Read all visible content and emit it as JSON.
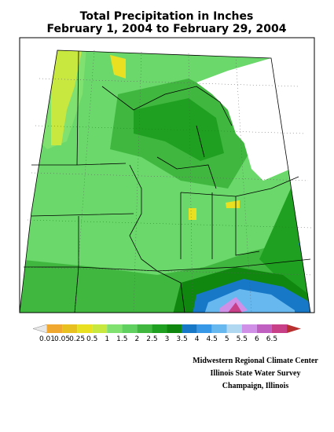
{
  "header": {
    "title": "Total Precipitation in Inches",
    "subtitle": "February 1, 2004 to February 29, 2004"
  },
  "legend": {
    "labels": [
      "0.01",
      "0.05",
      "0.25",
      "0.5",
      "1",
      "1.5",
      "2",
      "2.5",
      "3",
      "3.5",
      "4",
      "4.5",
      "5",
      "5.5",
      "6",
      "6.5"
    ],
    "colors": [
      "#e8e8e8",
      "#f0a830",
      "#e8c020",
      "#e8e020",
      "#c8e840",
      "#80e070",
      "#60d060",
      "#40b840",
      "#20a020",
      "#108810",
      "#1878c8",
      "#3898e8",
      "#68b8f0",
      "#b0d8f0",
      "#d090e8",
      "#c060c0",
      "#c84088",
      "#b83030"
    ]
  },
  "credits": [
    "Midwestern Regional Climate Center",
    "Illinois State Water Survey",
    "Champaign, Illinois"
  ]
}
